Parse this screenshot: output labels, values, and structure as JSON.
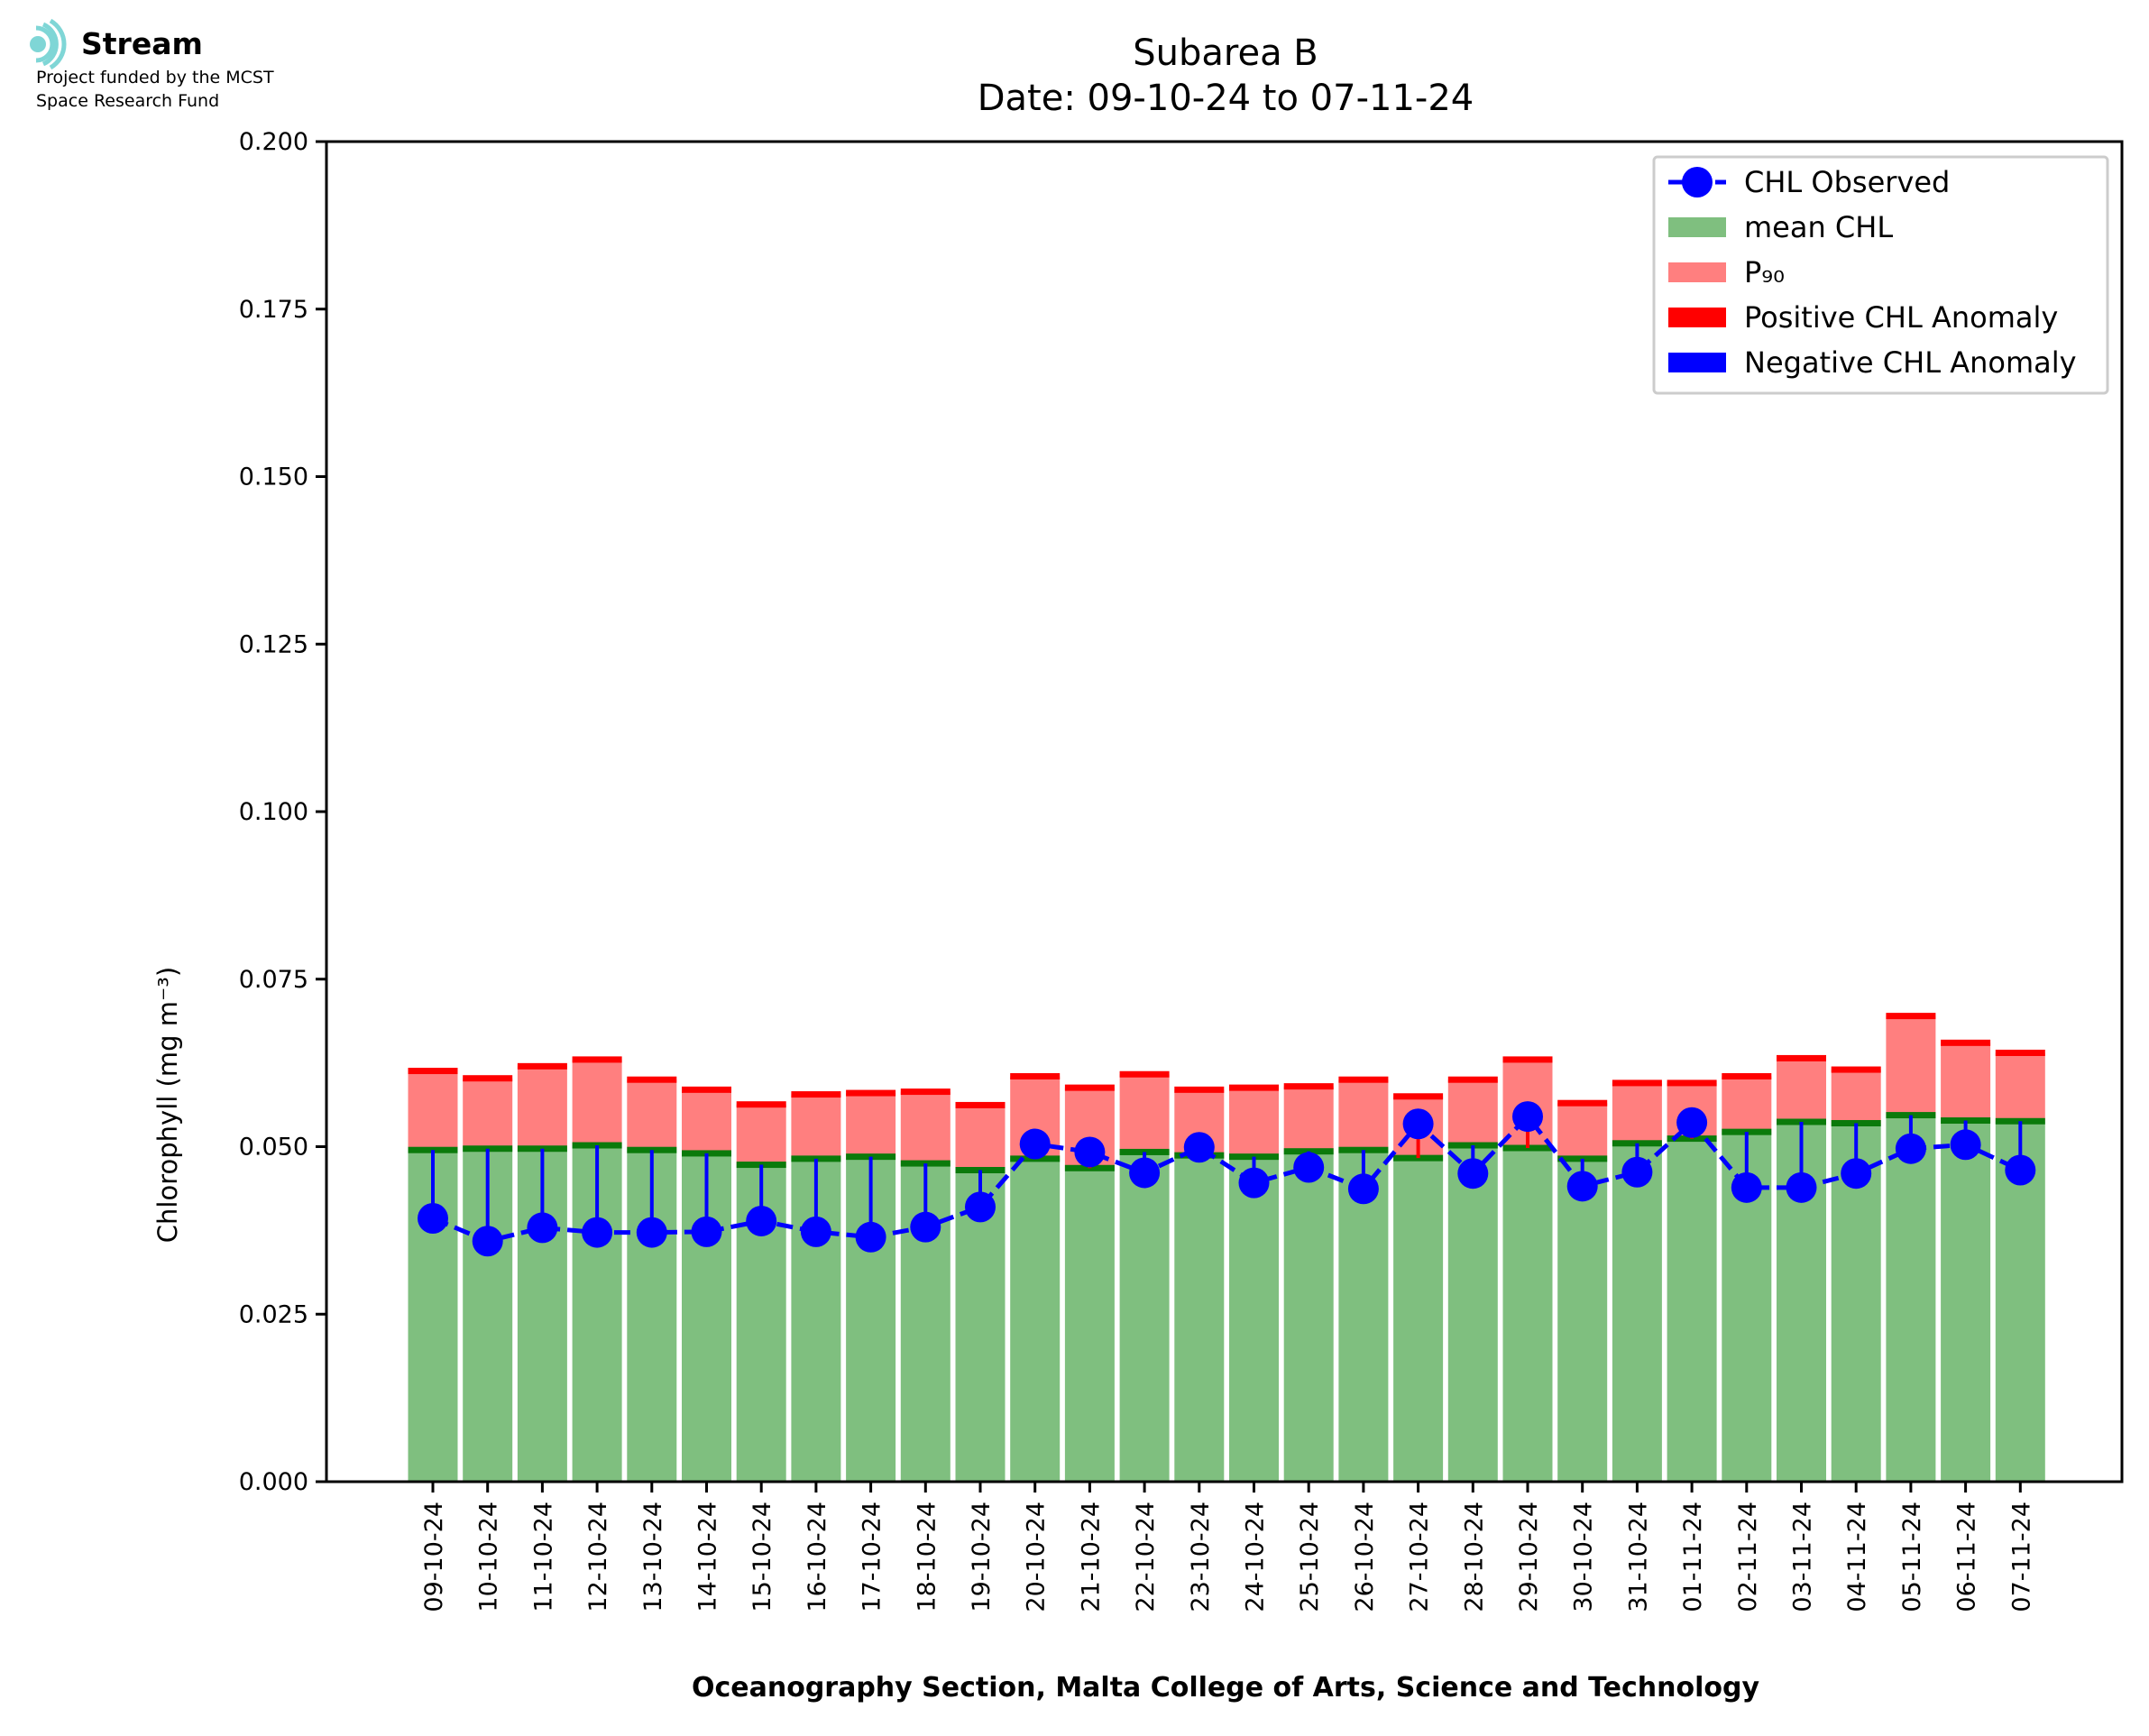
{
  "logo": {
    "name": "Stream",
    "line1": "Project funded by the MCST",
    "line2": "Space Research Fund"
  },
  "chart_data": {
    "type": "bar",
    "title": "Subarea B",
    "subtitle": "Date: 09-10-24 to 07-11-24",
    "xlabel": "Oceanography Section, Malta College of Arts, Science and Technology",
    "ylabel": "Chlorophyll (mg m⁻³)",
    "ylim": [
      0,
      0.2
    ],
    "yticks": [
      "0.000",
      "0.025",
      "0.050",
      "0.075",
      "0.100",
      "0.125",
      "0.150",
      "0.175",
      "0.200"
    ],
    "categories": [
      "09-10-24",
      "10-10-24",
      "11-10-24",
      "12-10-24",
      "13-10-24",
      "14-10-24",
      "15-10-24",
      "16-10-24",
      "17-10-24",
      "18-10-24",
      "19-10-24",
      "20-10-24",
      "21-10-24",
      "22-10-24",
      "23-10-24",
      "24-10-24",
      "25-10-24",
      "26-10-24",
      "27-10-24",
      "28-10-24",
      "29-10-24",
      "30-10-24",
      "31-10-24",
      "01-11-24",
      "02-11-24",
      "03-11-24",
      "04-11-24",
      "05-11-24",
      "06-11-24",
      "07-11-24"
    ],
    "series": [
      {
        "name": "mean CHL",
        "color": "#7fbf7f",
        "values": [
          0.0495,
          0.0497,
          0.0497,
          0.0502,
          0.0495,
          0.049,
          0.0473,
          0.0482,
          0.0485,
          0.0475,
          0.0465,
          0.0482,
          0.0468,
          0.0492,
          0.0487,
          0.0485,
          0.0493,
          0.0495,
          0.0483,
          0.0502,
          0.0498,
          0.0482,
          0.0505,
          0.0512,
          0.0522,
          0.0537,
          0.0535,
          0.0547,
          0.0539,
          0.0538
        ]
      },
      {
        "name": "P₉₀",
        "color": "#ff7f7f",
        "values": [
          0.0613,
          0.0602,
          0.062,
          0.063,
          0.06,
          0.0585,
          0.0563,
          0.0578,
          0.058,
          0.0582,
          0.0562,
          0.0605,
          0.0588,
          0.0608,
          0.0585,
          0.0588,
          0.059,
          0.06,
          0.0575,
          0.06,
          0.063,
          0.0565,
          0.0595,
          0.0595,
          0.0605,
          0.0632,
          0.0615,
          0.0695,
          0.0655,
          0.064
        ]
      },
      {
        "name": "CHL Observed",
        "color": "#0000ff",
        "values": [
          0.0393,
          0.0359,
          0.0379,
          0.0372,
          0.0372,
          0.0373,
          0.0389,
          0.0373,
          0.0365,
          0.038,
          0.041,
          0.0504,
          0.0492,
          0.0461,
          0.0499,
          0.0446,
          0.0469,
          0.0437,
          0.0534,
          0.046,
          0.0545,
          0.0441,
          0.0462,
          0.0536,
          0.0439,
          0.0439,
          0.046,
          0.0497,
          0.0503,
          0.0465
        ]
      }
    ],
    "legend": {
      "placement": "top-right",
      "entries": [
        "CHL Observed",
        "mean CHL",
        "P₉₀",
        "Positive CHL Anomaly",
        "Negative CHL Anomaly"
      ]
    },
    "anomaly_colors": {
      "positive": "#ff0000",
      "negative": "#0000ff"
    },
    "grid": false
  }
}
